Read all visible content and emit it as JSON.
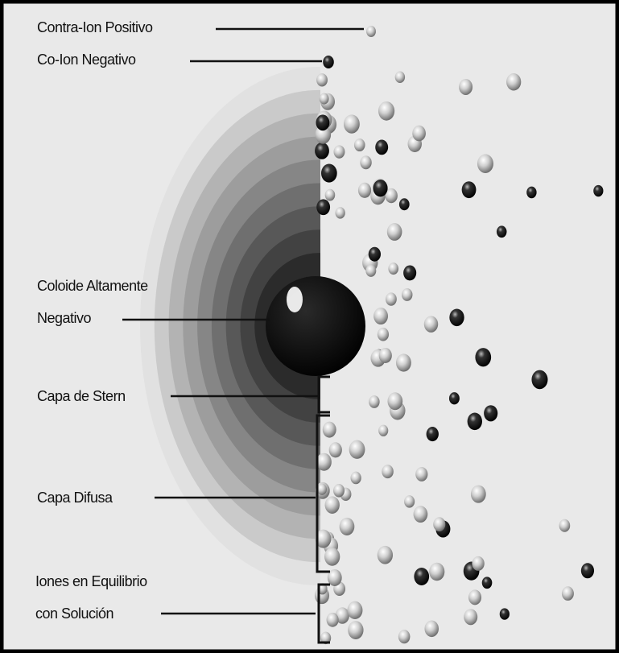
{
  "labels": [
    {
      "lines": [
        "Contra-Ion Positivo"
      ]
    },
    {
      "lines": [
        "Co-Ion Negativo"
      ]
    },
    {
      "lines": [
        "Coloide Altamente",
        "Negativo"
      ]
    },
    {
      "lines": [
        "Capa de Stern"
      ]
    },
    {
      "lines": [
        "Capa Difusa"
      ]
    },
    {
      "lines": [
        "Iones en Equilibrio",
        "con Solución"
      ]
    }
  ]
}
